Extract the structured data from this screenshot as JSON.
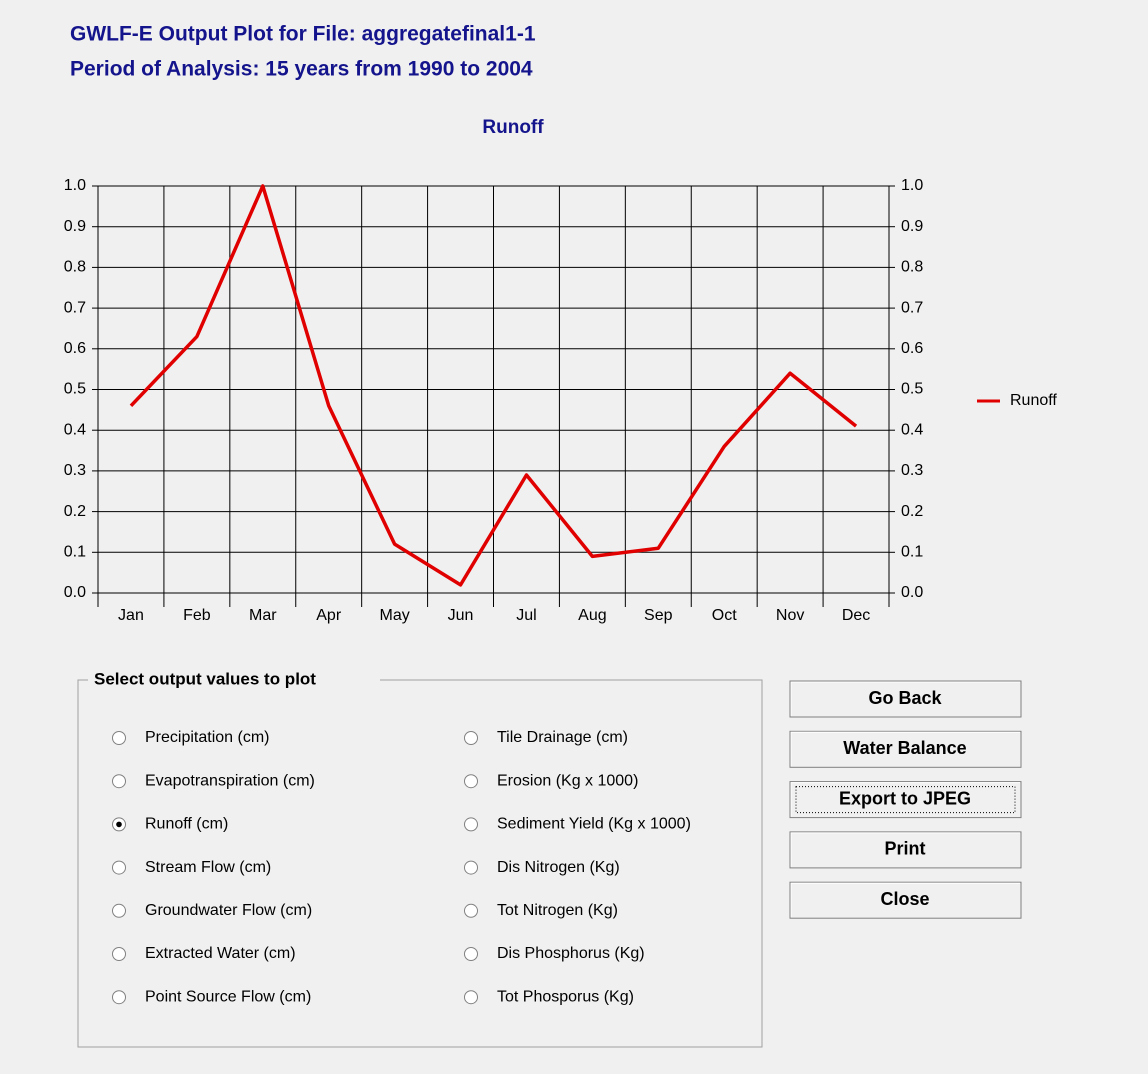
{
  "header": {
    "title": "GWLF-E Output Plot for File: aggregatefinal1-1",
    "subtitle": "Period of Analysis:  15 years from 1990 to 2004"
  },
  "chart_data": {
    "type": "line",
    "title": "Runoff",
    "categories": [
      "Jan",
      "Feb",
      "Mar",
      "Apr",
      "May",
      "Jun",
      "Jul",
      "Aug",
      "Sep",
      "Oct",
      "Nov",
      "Dec"
    ],
    "series": [
      {
        "name": "Runoff",
        "color": "#e00000",
        "values": [
          0.46,
          0.63,
          1.0,
          0.46,
          0.12,
          0.02,
          0.29,
          0.09,
          0.11,
          0.36,
          0.54,
          0.41
        ]
      }
    ],
    "ylim": [
      0,
      1
    ],
    "yticks": [
      {
        "value": 0,
        "label": "0.0"
      },
      0.1,
      0.2,
      0.3,
      0.4,
      0.5,
      0.6,
      0.7,
      0.8,
      0.9,
      {
        "value": 1,
        "label": "1.0"
      }
    ],
    "y2lim": [
      0,
      1
    ],
    "y2ticks": [
      {
        "value": 0,
        "label": "0.0"
      },
      0.1,
      0.2,
      0.3,
      0.4,
      0.5,
      0.6,
      0.7,
      0.8,
      0.9,
      {
        "value": 1,
        "label": "1.0"
      }
    ],
    "grid": true,
    "legend": "right"
  },
  "options": {
    "title": "Select output values to plot",
    "selected": 2,
    "items": [
      "Precipitation (cm)",
      "Evapotranspiration (cm)",
      "Runoff (cm)",
      "Stream Flow (cm)",
      "Groundwater Flow (cm)",
      "Extracted Water (cm)",
      "Point Source Flow (cm)",
      "Tile Drainage (cm)",
      "Erosion (Kg x 1000)",
      "Sediment Yield (Kg x 1000)",
      "Dis Nitrogen (Kg)",
      "Tot Nitrogen (Kg)",
      "Dis Phosphorus (Kg)",
      "Tot Phosporus (Kg)"
    ]
  },
  "buttons": [
    "Go Back",
    "Water Balance",
    "Export to JPEG",
    "Print",
    "Close"
  ]
}
